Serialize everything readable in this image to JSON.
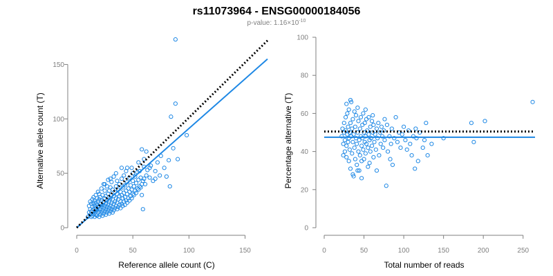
{
  "figure": {
    "title": "rs11073964 - ENSG00000184056",
    "subtitle_prefix": "p-value: 1.16×10",
    "subtitle_exponent": "-10",
    "colors": {
      "points": "#1e88e5",
      "fit_line": "#1e88e5",
      "reference_line": "#000000",
      "axis": "#7f7f7f"
    }
  },
  "chart_data": [
    {
      "type": "scatter",
      "xlabel": "Reference allele count (C)",
      "ylabel": "Alternative allele count (T)",
      "xlim": [
        0,
        170
      ],
      "ylim": [
        0,
        175
      ],
      "xticks": [
        0,
        50,
        100,
        150
      ],
      "yticks": [
        0,
        50,
        100,
        150
      ],
      "grid": false,
      "fit_line": {
        "points": [
          [
            0,
            0
          ],
          [
            170,
            155
          ]
        ]
      },
      "reference_line": {
        "points": [
          [
            0,
            0
          ],
          [
            170,
            172
          ]
        ],
        "style": "dotted"
      },
      "points": [
        [
          10,
          10
        ],
        [
          11,
          14
        ],
        [
          11,
          20
        ],
        [
          12,
          12
        ],
        [
          12,
          17
        ],
        [
          12,
          24
        ],
        [
          13,
          10
        ],
        [
          13,
          15
        ],
        [
          13,
          22
        ],
        [
          14,
          11
        ],
        [
          14,
          19
        ],
        [
          14,
          26
        ],
        [
          15,
          13
        ],
        [
          15,
          17
        ],
        [
          15,
          22
        ],
        [
          15,
          28
        ],
        [
          16,
          10
        ],
        [
          16,
          15
        ],
        [
          16,
          20
        ],
        [
          16,
          25
        ],
        [
          17,
          12
        ],
        [
          17,
          18
        ],
        [
          17,
          23
        ],
        [
          17,
          30
        ],
        [
          18,
          11
        ],
        [
          18,
          16
        ],
        [
          18,
          21
        ],
        [
          18,
          27
        ],
        [
          19,
          14
        ],
        [
          19,
          19
        ],
        [
          19,
          24
        ],
        [
          19,
          33
        ],
        [
          20,
          10
        ],
        [
          20,
          15
        ],
        [
          20,
          20
        ],
        [
          20,
          26
        ],
        [
          20,
          31
        ],
        [
          21,
          12
        ],
        [
          21,
          17
        ],
        [
          21,
          22
        ],
        [
          21,
          28
        ],
        [
          22,
          14
        ],
        [
          22,
          19
        ],
        [
          22,
          25
        ],
        [
          22,
          36
        ],
        [
          23,
          11
        ],
        [
          23,
          16
        ],
        [
          23,
          21
        ],
        [
          23,
          30
        ],
        [
          24,
          13
        ],
        [
          24,
          18
        ],
        [
          24,
          24
        ],
        [
          24,
          40
        ],
        [
          25,
          15
        ],
        [
          25,
          20
        ],
        [
          25,
          27
        ],
        [
          25,
          34
        ],
        [
          26,
          12
        ],
        [
          26,
          17
        ],
        [
          26,
          22
        ],
        [
          26,
          29
        ],
        [
          27,
          14
        ],
        [
          27,
          19
        ],
        [
          27,
          25
        ],
        [
          27,
          38
        ],
        [
          28,
          16
        ],
        [
          28,
          21
        ],
        [
          28,
          31
        ],
        [
          28,
          44
        ],
        [
          29,
          13
        ],
        [
          29,
          18
        ],
        [
          29,
          24
        ],
        [
          29,
          34
        ],
        [
          30,
          15
        ],
        [
          30,
          20
        ],
        [
          30,
          27
        ],
        [
          30,
          37
        ],
        [
          31,
          17
        ],
        [
          31,
          23
        ],
        [
          31,
          30
        ],
        [
          31,
          42
        ],
        [
          32,
          14
        ],
        [
          32,
          19
        ],
        [
          32,
          26
        ],
        [
          32,
          35
        ],
        [
          33,
          16
        ],
        [
          33,
          22
        ],
        [
          33,
          29
        ],
        [
          33,
          47
        ],
        [
          34,
          18
        ],
        [
          34,
          24
        ],
        [
          34,
          33
        ],
        [
          35,
          20
        ],
        [
          35,
          27
        ],
        [
          35,
          38
        ],
        [
          36,
          17
        ],
        [
          36,
          23
        ],
        [
          36,
          31
        ],
        [
          36,
          43
        ],
        [
          37,
          19
        ],
        [
          37,
          26
        ],
        [
          37,
          35
        ],
        [
          38,
          21
        ],
        [
          38,
          29
        ],
        [
          38,
          40
        ],
        [
          39,
          18
        ],
        [
          39,
          24
        ],
        [
          39,
          33
        ],
        [
          40,
          22
        ],
        [
          40,
          30
        ],
        [
          40,
          45
        ],
        [
          41,
          20
        ],
        [
          41,
          27
        ],
        [
          41,
          37
        ],
        [
          42,
          24
        ],
        [
          42,
          32
        ],
        [
          42,
          48
        ],
        [
          43,
          21
        ],
        [
          43,
          28
        ],
        [
          43,
          39
        ],
        [
          44,
          25
        ],
        [
          44,
          34
        ],
        [
          44,
          52
        ],
        [
          45,
          23
        ],
        [
          45,
          31
        ],
        [
          45,
          42
        ],
        [
          46,
          27
        ],
        [
          46,
          36
        ],
        [
          47,
          25
        ],
        [
          47,
          33
        ],
        [
          47,
          46
        ],
        [
          48,
          29
        ],
        [
          48,
          39
        ],
        [
          49,
          27
        ],
        [
          49,
          35
        ],
        [
          49,
          55
        ],
        [
          50,
          31
        ],
        [
          50,
          43
        ],
        [
          51,
          30
        ],
        [
          51,
          38
        ],
        [
          52,
          34
        ],
        [
          52,
          47
        ],
        [
          53,
          32
        ],
        [
          53,
          41
        ],
        [
          54,
          36
        ],
        [
          54,
          51
        ],
        [
          55,
          35
        ],
        [
          55,
          44
        ],
        [
          56,
          38
        ],
        [
          56,
          52
        ],
        [
          57,
          37
        ],
        [
          57,
          46
        ],
        [
          58,
          40
        ],
        [
          58,
          30
        ],
        [
          59,
          17
        ],
        [
          59,
          43
        ],
        [
          60,
          45
        ],
        [
          60,
          56
        ],
        [
          61,
          40
        ],
        [
          62,
          48
        ],
        [
          63,
          53
        ],
        [
          65,
          46
        ],
        [
          66,
          57
        ],
        [
          68,
          43
        ],
        [
          70,
          52
        ],
        [
          72,
          60
        ],
        [
          74,
          48
        ],
        [
          75,
          66
        ],
        [
          78,
          55
        ],
        [
          80,
          47
        ],
        [
          82,
          62
        ],
        [
          83,
          38
        ],
        [
          84,
          102
        ],
        [
          86,
          73
        ],
        [
          88,
          114
        ],
        [
          90,
          63
        ],
        [
          98,
          85
        ],
        [
          88,
          173
        ],
        [
          55,
          60
        ],
        [
          60,
          63
        ],
        [
          62,
          70
        ],
        [
          58,
          72
        ],
        [
          65,
          55
        ],
        [
          70,
          45
        ],
        [
          45,
          55
        ],
        [
          50,
          50
        ],
        [
          30,
          45
        ],
        [
          25,
          40
        ],
        [
          35,
          50
        ],
        [
          40,
          55
        ]
      ]
    },
    {
      "type": "scatter",
      "xlabel": "Total number of reads",
      "ylabel": "Percentage alternative (T)",
      "xlim": [
        0,
        265
      ],
      "ylim": [
        0,
        100
      ],
      "xticks": [
        0,
        50,
        100,
        150,
        200,
        250
      ],
      "yticks": [
        0,
        20,
        40,
        60,
        80,
        100
      ],
      "grid": false,
      "fit_line": {
        "y": 47.5
      },
      "reference_line": {
        "y": 50.5,
        "style": "dotted"
      },
      "points": [
        [
          22,
          48
        ],
        [
          23,
          52
        ],
        [
          24,
          44
        ],
        [
          25,
          50
        ],
        [
          25,
          55
        ],
        [
          26,
          46
        ],
        [
          26,
          40
        ],
        [
          27,
          58
        ],
        [
          27,
          51
        ],
        [
          28,
          43
        ],
        [
          28,
          37
        ],
        [
          29,
          49
        ],
        [
          29,
          60
        ],
        [
          30,
          45
        ],
        [
          30,
          53
        ],
        [
          31,
          35
        ],
        [
          31,
          47
        ],
        [
          31,
          62
        ],
        [
          32,
          50
        ],
        [
          32,
          41
        ],
        [
          33,
          55
        ],
        [
          33,
          31
        ],
        [
          34,
          48
        ],
        [
          34,
          66
        ],
        [
          35,
          39
        ],
        [
          35,
          52
        ],
        [
          36,
          45
        ],
        [
          36,
          57
        ],
        [
          37,
          27
        ],
        [
          37,
          49
        ],
        [
          38,
          42
        ],
        [
          38,
          61
        ],
        [
          39,
          53
        ],
        [
          39,
          36
        ],
        [
          40,
          47
        ],
        [
          40,
          59
        ],
        [
          41,
          33
        ],
        [
          41,
          44
        ],
        [
          42,
          50
        ],
        [
          42,
          63
        ],
        [
          43,
          40
        ],
        [
          43,
          56
        ],
        [
          44,
          46
        ],
        [
          44,
          30
        ],
        [
          45,
          52
        ],
        [
          45,
          38
        ],
        [
          46,
          48
        ],
        [
          46,
          58
        ],
        [
          47,
          43
        ],
        [
          47,
          35
        ],
        [
          48,
          54
        ],
        [
          48,
          47
        ],
        [
          49,
          41
        ],
        [
          49,
          60
        ],
        [
          50,
          50
        ],
        [
          50,
          36
        ],
        [
          51,
          45
        ],
        [
          51,
          55
        ],
        [
          52,
          48
        ],
        [
          52,
          39
        ],
        [
          53,
          57
        ],
        [
          53,
          44
        ],
        [
          54,
          51
        ],
        [
          55,
          42
        ],
        [
          55,
          32
        ],
        [
          56,
          49
        ],
        [
          56,
          58
        ],
        [
          57,
          46
        ],
        [
          58,
          53
        ],
        [
          58,
          40
        ],
        [
          59,
          47
        ],
        [
          60,
          56
        ],
        [
          60,
          43
        ],
        [
          61,
          50
        ],
        [
          62,
          37
        ],
        [
          62,
          54
        ],
        [
          63,
          45
        ],
        [
          64,
          49
        ],
        [
          65,
          41
        ],
        [
          66,
          52
        ],
        [
          67,
          47
        ],
        [
          68,
          55
        ],
        [
          69,
          38
        ],
        [
          70,
          50
        ],
        [
          71,
          44
        ],
        [
          72,
          53
        ],
        [
          73,
          48
        ],
        [
          74,
          42
        ],
        [
          75,
          51
        ],
        [
          76,
          46
        ],
        [
          78,
          22
        ],
        [
          79,
          54
        ],
        [
          80,
          40
        ],
        [
          82,
          48
        ],
        [
          84,
          44
        ],
        [
          85,
          52
        ],
        [
          86,
          33
        ],
        [
          88,
          47
        ],
        [
          90,
          58
        ],
        [
          92,
          45
        ],
        [
          94,
          50
        ],
        [
          96,
          42
        ],
        [
          98,
          49
        ],
        [
          100,
          53
        ],
        [
          102,
          46
        ],
        [
          104,
          41
        ],
        [
          106,
          51
        ],
        [
          108,
          44
        ],
        [
          110,
          38
        ],
        [
          112,
          48
        ],
        [
          114,
          31
        ],
        [
          115,
          52
        ],
        [
          116,
          47
        ],
        [
          118,
          35
        ],
        [
          120,
          50
        ],
        [
          124,
          42
        ],
        [
          126,
          46
        ],
        [
          128,
          55
        ],
        [
          130,
          38
        ],
        [
          135,
          44
        ],
        [
          150,
          47
        ],
        [
          185,
          55
        ],
        [
          188,
          45
        ],
        [
          202,
          56
        ],
        [
          262,
          66
        ],
        [
          24,
          38
        ],
        [
          28,
          65
        ],
        [
          33,
          67
        ],
        [
          36,
          28
        ],
        [
          42,
          30
        ],
        [
          47,
          26
        ],
        [
          52,
          62
        ],
        [
          57,
          34
        ],
        [
          61,
          59
        ],
        [
          66,
          30
        ],
        [
          76,
          57
        ],
        [
          83,
          36
        ]
      ]
    }
  ]
}
